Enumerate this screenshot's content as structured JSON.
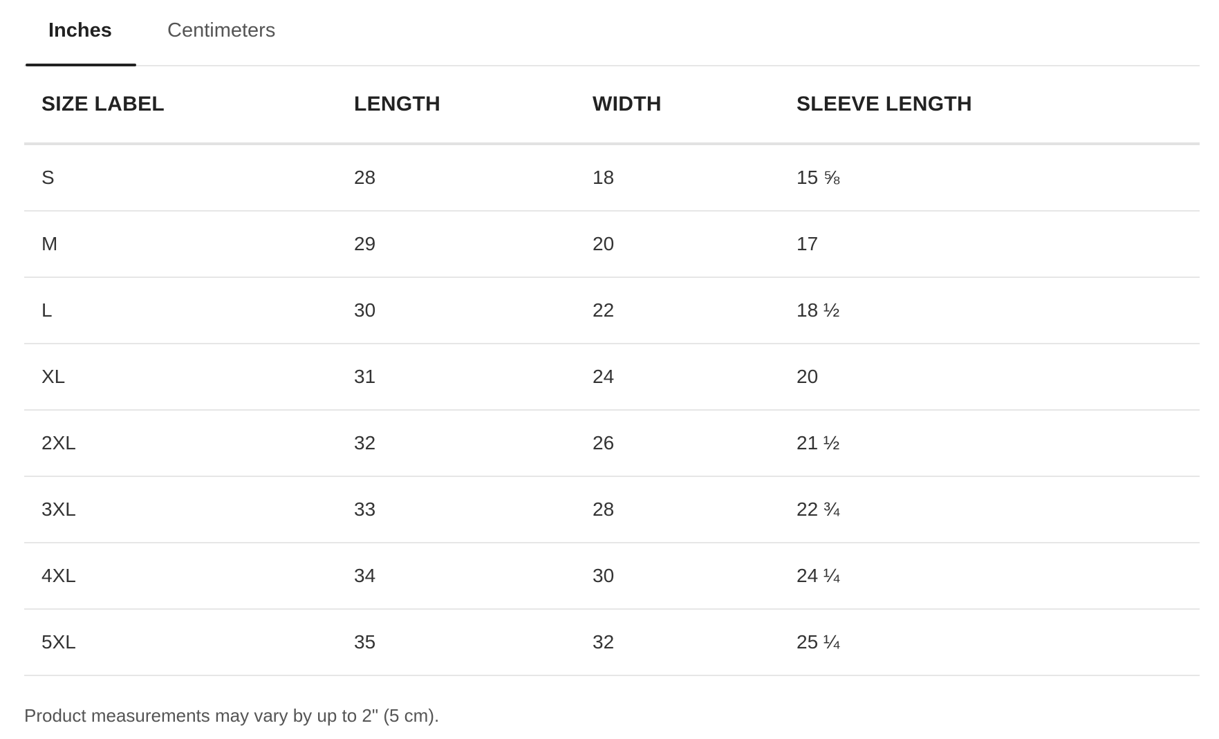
{
  "tabs": [
    "Inches",
    "Centimeters"
  ],
  "table": {
    "headers": [
      "SIZE LABEL",
      "LENGTH",
      "WIDTH",
      "SLEEVE LENGTH"
    ],
    "rows": [
      [
        "S",
        "28",
        "18",
        "15 ⅝"
      ],
      [
        "M",
        "29",
        "20",
        "17"
      ],
      [
        "L",
        "30",
        "22",
        "18 ½"
      ],
      [
        "XL",
        "31",
        "24",
        "20"
      ],
      [
        "2XL",
        "32",
        "26",
        "21 ½"
      ],
      [
        "3XL",
        "33",
        "28",
        "22 ¾"
      ],
      [
        "4XL",
        "34",
        "30",
        "24 ¼"
      ],
      [
        "5XL",
        "35",
        "32",
        "25 ¼"
      ]
    ]
  },
  "footnote": "Product measurements may vary by up to 2\" (5 cm)."
}
